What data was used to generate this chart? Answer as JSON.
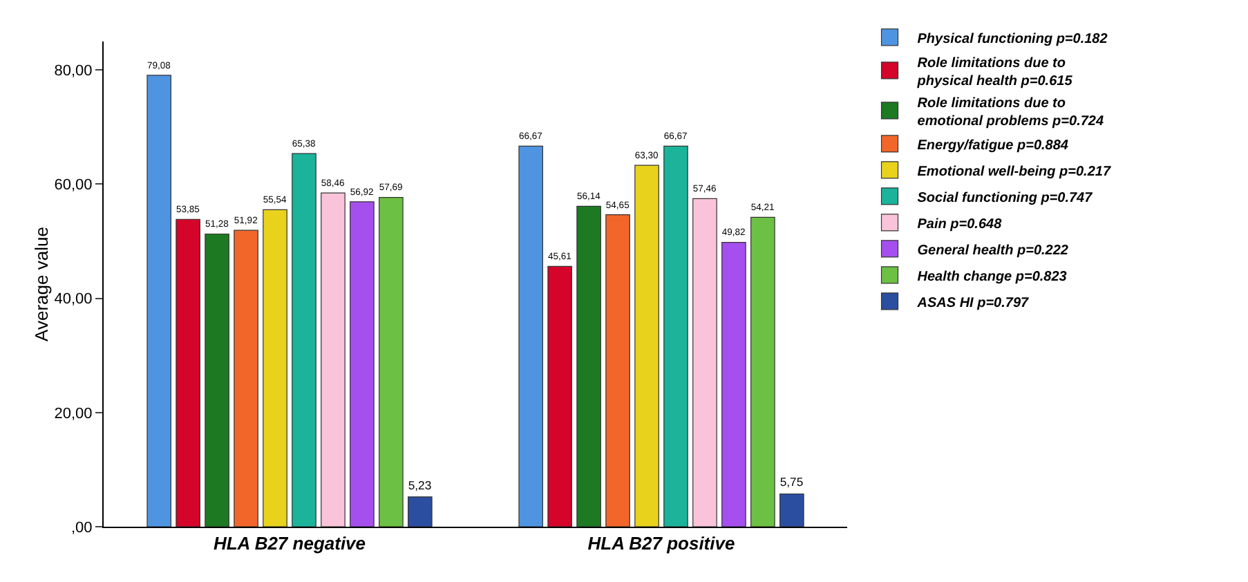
{
  "chart_data": {
    "type": "bar",
    "ylabel": "Average value",
    "categories": [
      "HLA B27 negative",
      "HLA B27 positive"
    ],
    "series": [
      {
        "name": "Physical functioning p=0.182",
        "color": "#4f94e0",
        "values": [
          79.08,
          66.67
        ],
        "value_labels": [
          "79,08",
          "66,67"
        ]
      },
      {
        "name": "Role limitations due to physical health p=0.615",
        "color": "#d4042a",
        "values": [
          53.85,
          45.61
        ],
        "value_labels": [
          "53,85",
          "45,61"
        ]
      },
      {
        "name": "Role limitations due to emotional problems p=0.724",
        "color": "#1e7a22",
        "values": [
          51.28,
          56.14
        ],
        "value_labels": [
          "51,28",
          "56,14"
        ]
      },
      {
        "name": "Energy/fatigue p=0.884",
        "color": "#f2662a",
        "values": [
          51.92,
          54.65
        ],
        "value_labels": [
          "51,92",
          "54,65"
        ]
      },
      {
        "name": "Emotional well-being p=0.217",
        "color": "#e8d21c",
        "values": [
          55.54,
          63.3
        ],
        "value_labels": [
          "55,54",
          "63,30"
        ]
      },
      {
        "name": "Social functioning p=0.747",
        "color": "#1bb39a",
        "values": [
          65.38,
          66.67
        ],
        "value_labels": [
          "65,38",
          "66,67"
        ]
      },
      {
        "name": "Pain p=0.648",
        "color": "#f9c3d9",
        "values": [
          58.46,
          57.46
        ],
        "value_labels": [
          "58,46",
          "57,46"
        ]
      },
      {
        "name": "General health p=0.222",
        "color": "#a550ee",
        "values": [
          56.92,
          49.82
        ],
        "value_labels": [
          "56,92",
          "49,82"
        ]
      },
      {
        "name": "Health change p=0.823",
        "color": "#6cc043",
        "values": [
          57.69,
          54.21
        ],
        "value_labels": [
          "57,69",
          "54,21"
        ]
      },
      {
        "name": "ASAS HI p=0.797",
        "color": "#2b4ea0",
        "values": [
          5.23,
          5.75
        ],
        "value_labels": [
          "5,23",
          "5,75"
        ]
      }
    ],
    "ylim": [
      0,
      85
    ],
    "yticks": [
      {
        "value": 0,
        "label": ",00"
      },
      {
        "value": 20,
        "label": "20,00"
      },
      {
        "value": 40,
        "label": "40,00"
      },
      {
        "value": 60,
        "label": "60,00"
      },
      {
        "value": 80,
        "label": "80,00"
      }
    ],
    "grid": false,
    "legend": "top right"
  }
}
